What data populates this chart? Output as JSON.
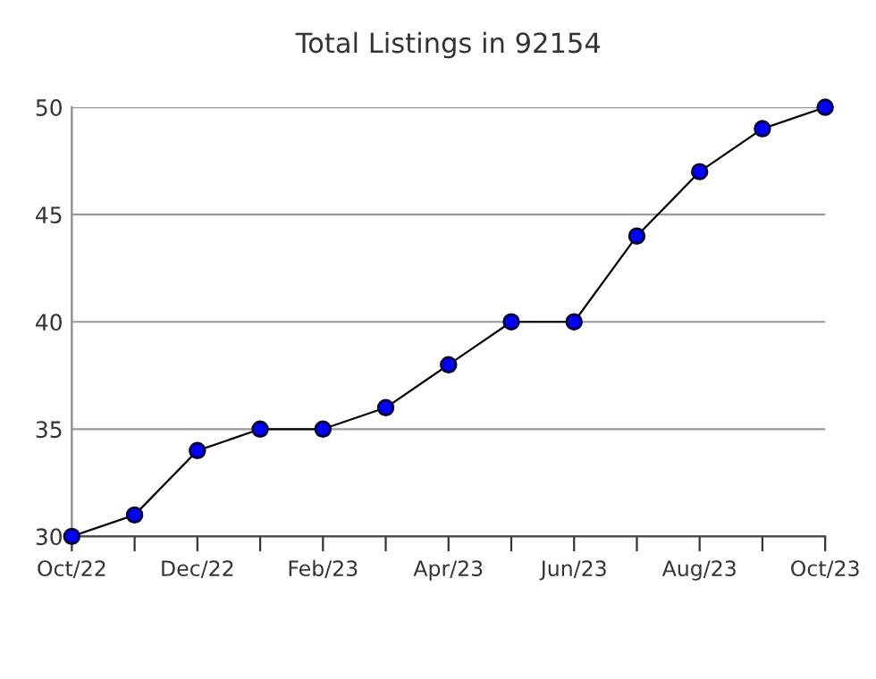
{
  "chart_data": {
    "type": "line",
    "title": "Total Listings in 92154",
    "categories": [
      "Oct/22",
      null,
      "Dec/22",
      null,
      "Feb/23",
      null,
      "Apr/23",
      null,
      "Jun/23",
      null,
      "Aug/23",
      null,
      "Oct/23"
    ],
    "series": [
      {
        "color": "#0000ff",
        "values": [
          30,
          31,
          34,
          35,
          35,
          36,
          38,
          40,
          40,
          44,
          47,
          49,
          50
        ]
      }
    ],
    "ylim": [
      30,
      50
    ],
    "yticks": [
      30,
      35,
      40,
      45,
      50
    ],
    "grid": "y",
    "marker": "circle",
    "line_style": "solid"
  }
}
